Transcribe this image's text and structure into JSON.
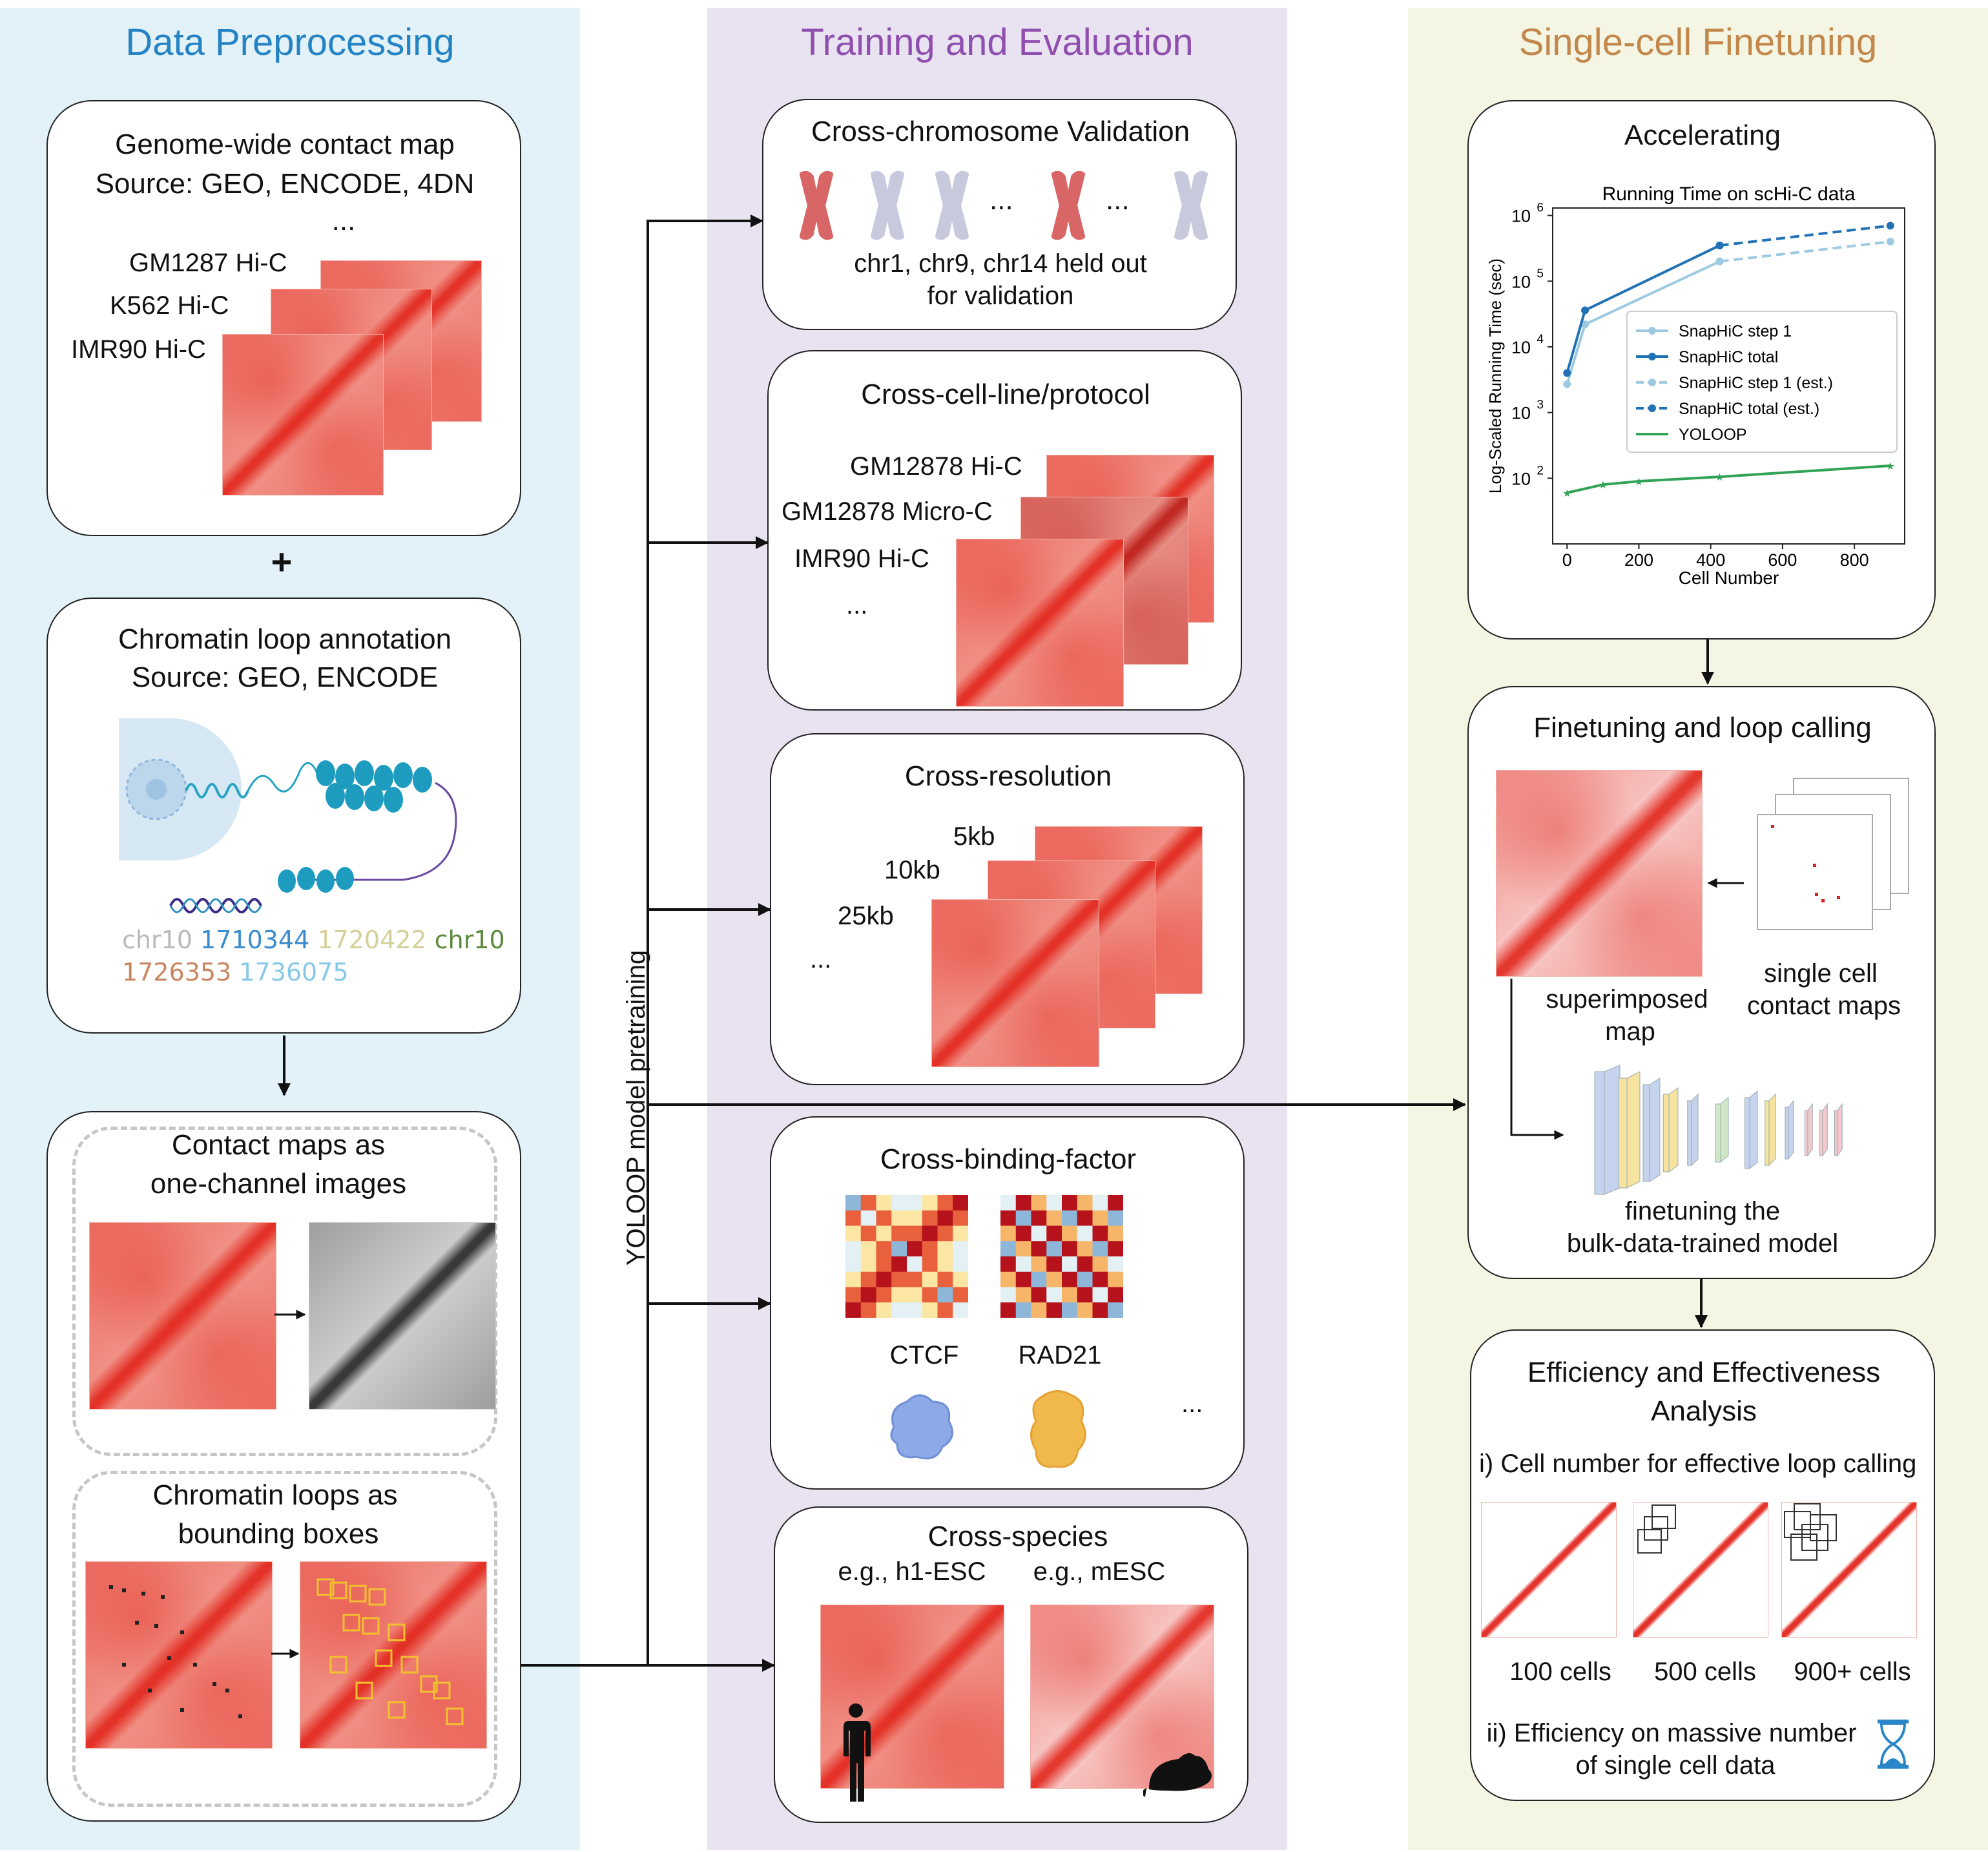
{
  "columns": {
    "preprocessing": {
      "title": "Data Preprocessing"
    },
    "training": {
      "title": "Training and Evaluation"
    },
    "finetuning": {
      "title": "Single-cell Finetuning"
    }
  },
  "genome_map": {
    "title_line1": "Genome-wide contact map",
    "title_line2": "Source: GEO, ENCODE, 4DN",
    "ellipsis": "...",
    "labels": [
      "GM1287 Hi-C",
      "K562 Hi-C",
      "IMR90 Hi-C"
    ]
  },
  "plus": "+",
  "loop_annotation": {
    "title_line1": "Chromatin loop annotation",
    "title_line2": "Source: GEO, ENCODE",
    "tokens_line1": [
      "chr10",
      "1710344",
      "1720422",
      "chr10"
    ],
    "tokens_line2": [
      "1726353",
      "1736075"
    ]
  },
  "images_box": {
    "contact_title_line1": "Contact maps as",
    "contact_title_line2": "one-channel images",
    "loops_title_line1": "Chromatin loops as",
    "loops_title_line2": "bounding boxes"
  },
  "pretrain_label": "YOLOOP model pretraining",
  "cross_chromosome": {
    "title": "Cross-chromosome Validation",
    "caption_line1": "chr1, chr9, chr14 held out",
    "caption_line2": "for validation",
    "ellipsis": "..."
  },
  "cross_cell": {
    "title": "Cross-cell-line/protocol",
    "labels": [
      "GM12878 Hi-C",
      "GM12878 Micro-C",
      "IMR90 Hi-C"
    ],
    "ellipsis": "..."
  },
  "cross_resolution": {
    "title": "Cross-resolution",
    "labels": [
      "5kb",
      "10kb",
      "25kb"
    ],
    "ellipsis": "..."
  },
  "cross_binding": {
    "title": "Cross-binding-factor",
    "labels": [
      "CTCF",
      "RAD21"
    ],
    "ellipsis": "..."
  },
  "cross_species": {
    "title": "Cross-species",
    "labels": [
      "e.g., h1-ESC",
      "e.g., mESC"
    ]
  },
  "accelerating": {
    "title": "Accelerating"
  },
  "chart_data": {
    "type": "line",
    "title": "Running Time on scHi-C data",
    "xlabel": "Cell Number",
    "ylabel": "Log-Scaled Running Time (sec)",
    "xlim": [
      -40,
      940
    ],
    "ylim": [
      10.0,
      1300000.0
    ],
    "yscale": "log",
    "xticks": [
      0,
      200,
      400,
      600,
      800
    ],
    "yticks": [
      100,
      1000,
      10000,
      100000,
      1000000
    ],
    "ytick_labels": [
      "10",
      "10",
      "10",
      "10",
      "10"
    ],
    "ytick_exponents": [
      "2",
      "3",
      "4",
      "5",
      "6"
    ],
    "legend_position": "center-right",
    "series": [
      {
        "name": "SnapHiC step 1",
        "x": [
          0,
          50,
          425
        ],
        "y": [
          2700,
          22000,
          200000
        ],
        "color": "#9ecae1",
        "dashed": false
      },
      {
        "name": "SnapHiC total",
        "x": [
          0,
          50,
          425
        ],
        "y": [
          4000,
          36000,
          350000
        ],
        "color": "#2171b5",
        "dashed": false
      },
      {
        "name": "SnapHiC step 1 (est.)",
        "x": [
          425,
          900
        ],
        "y": [
          200000,
          400000
        ],
        "color": "#9ecae1",
        "dashed": true
      },
      {
        "name": "SnapHiC total (est.)",
        "x": [
          425,
          900
        ],
        "y": [
          350000,
          700000
        ],
        "color": "#2171b5",
        "dashed": true
      },
      {
        "name": "YOLOOP",
        "x": [
          0,
          100,
          200,
          425,
          900
        ],
        "y": [
          60,
          80,
          90,
          105,
          155
        ],
        "color": "#31a354",
        "dashed": false
      }
    ]
  },
  "finetune_box": {
    "title": "Finetuning and loop calling",
    "superimposed_line1": "superimposed",
    "superimposed_line2": "map",
    "single_line1": "single cell",
    "single_line2": "contact maps",
    "finetune_line1": "finetuning the",
    "finetune_line2": "bulk-data-trained model"
  },
  "efficiency": {
    "title_line1": "Efficiency and Effectiveness",
    "title_line2": "Analysis",
    "item1": "i) Cell number for effective loop calling",
    "cell_labels": [
      "100 cells",
      "500 cells",
      "900+ cells"
    ],
    "item2_line1": "ii) Efficiency on massive number",
    "item2_line2": "of single cell data"
  },
  "colors": {
    "heatmap": "#e8352b",
    "heatmap_light": "#fbe0da",
    "arrow": "#111111",
    "box_yellow": "#f2c12e"
  }
}
